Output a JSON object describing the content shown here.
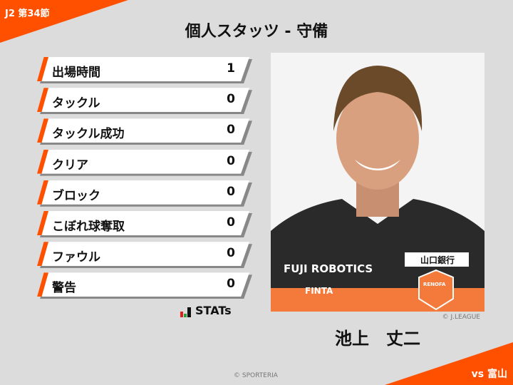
{
  "header": {
    "round": "J2 第34節",
    "title": "個人スタッツ - 守備",
    "opponent": "vs 富山"
  },
  "stats": [
    {
      "label": "出場時間",
      "value": "1"
    },
    {
      "label": "タックル",
      "value": "0"
    },
    {
      "label": "タックル成功",
      "value": "0"
    },
    {
      "label": "クリア",
      "value": "0"
    },
    {
      "label": "ブロック",
      "value": "0"
    },
    {
      "label": "こぼれ球奪取",
      "value": "0"
    },
    {
      "label": "ファウル",
      "value": "0"
    },
    {
      "label": "警告",
      "value": "0"
    }
  ],
  "logo": {
    "text": "STATs"
  },
  "player": {
    "name": "池上　丈二",
    "photo_credit": "© J.LEAGUE",
    "shirt_sponsor": "FUJI ROBOTICS",
    "kit_brand": "FINTA",
    "bank_sponsor": "山口銀行",
    "club_crest": "RENOFA"
  },
  "footer": {
    "copyright": "© SPORTERIA"
  },
  "colors": {
    "accent": "#ff5000",
    "background": "#dcdcdc"
  }
}
